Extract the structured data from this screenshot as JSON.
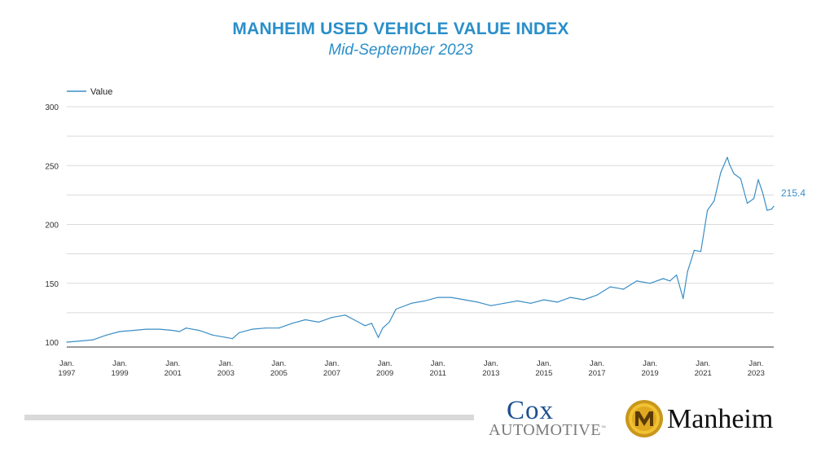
{
  "header": {
    "title": "MANHEIM USED VEHICLE VALUE INDEX",
    "subtitle": "Mid-September 2023"
  },
  "colors": {
    "accent": "#2a8fc9",
    "series": "#3a8ec5",
    "grid": "#d9d9d9",
    "axis": "#333333"
  },
  "chart_data": {
    "type": "line",
    "title": "MANHEIM USED VEHICLE VALUE INDEX",
    "subtitle": "Mid-September 2023",
    "xlabel": "",
    "ylabel": "",
    "ylim": [
      100,
      300
    ],
    "xlim": [
      "1997-01",
      "2023-09"
    ],
    "yticks": [
      100,
      150,
      200,
      250,
      300
    ],
    "xticks": [
      {
        "year": 1997,
        "top": "Jan.",
        "bottom": "1997"
      },
      {
        "year": 1999,
        "top": "Jan.",
        "bottom": "1999"
      },
      {
        "year": 2001,
        "top": "Jan.",
        "bottom": "2001"
      },
      {
        "year": 2003,
        "top": "Jan.",
        "bottom": "2003"
      },
      {
        "year": 2005,
        "top": "Jan.",
        "bottom": "2005"
      },
      {
        "year": 2007,
        "top": "Jan.",
        "bottom": "2007"
      },
      {
        "year": 2009,
        "top": "Jan.",
        "bottom": "2009"
      },
      {
        "year": 2011,
        "top": "Jan.",
        "bottom": "2011"
      },
      {
        "year": 2013,
        "top": "Jan.",
        "bottom": "2013"
      },
      {
        "year": 2015,
        "top": "Jan.",
        "bottom": "2015"
      },
      {
        "year": 2017,
        "top": "Jan.",
        "bottom": "2017"
      },
      {
        "year": 2019,
        "top": "Jan.",
        "bottom": "2019"
      },
      {
        "year": 2021,
        "top": "Jan.",
        "bottom": "2021"
      },
      {
        "year": 2023,
        "top": "Jan.",
        "bottom": "2023"
      }
    ],
    "grid": true,
    "legend": {
      "position": "top-left",
      "entries": [
        "Value"
      ]
    },
    "end_label": "215.4",
    "series": [
      {
        "name": "Value",
        "x": [
          "1997-01",
          "1997-07",
          "1998-01",
          "1998-07",
          "1999-01",
          "1999-07",
          "2000-01",
          "2000-07",
          "2001-01",
          "2001-04",
          "2001-07",
          "2002-01",
          "2002-07",
          "2003-01",
          "2003-04",
          "2003-07",
          "2004-01",
          "2004-07",
          "2005-01",
          "2005-07",
          "2006-01",
          "2006-07",
          "2007-01",
          "2007-07",
          "2008-01",
          "2008-04",
          "2008-07",
          "2008-10",
          "2008-12",
          "2009-03",
          "2009-06",
          "2010-01",
          "2010-07",
          "2011-01",
          "2011-07",
          "2012-01",
          "2012-07",
          "2013-01",
          "2013-07",
          "2014-01",
          "2014-07",
          "2015-01",
          "2015-07",
          "2016-01",
          "2016-07",
          "2017-01",
          "2017-07",
          "2018-01",
          "2018-07",
          "2019-01",
          "2019-07",
          "2019-10",
          "2020-01",
          "2020-04",
          "2020-06",
          "2020-09",
          "2020-12",
          "2021-03",
          "2021-06",
          "2021-09",
          "2021-12",
          "2022-01",
          "2022-03",
          "2022-06",
          "2022-09",
          "2022-12",
          "2023-02",
          "2023-04",
          "2023-06",
          "2023-08",
          "2023-09"
        ],
        "values": [
          100,
          101,
          102,
          106,
          109,
          110,
          111,
          111,
          110,
          109,
          112,
          110,
          106,
          104,
          103,
          108,
          111,
          112,
          112,
          116,
          119,
          117,
          121,
          123,
          117,
          114,
          116,
          104,
          112,
          117,
          128,
          133,
          135,
          138,
          138,
          136,
          134,
          131,
          133,
          135,
          133,
          136,
          134,
          138,
          136,
          140,
          147,
          145,
          152,
          150,
          154,
          152,
          157,
          137,
          160,
          178,
          177,
          212,
          220,
          244,
          257,
          251,
          243,
          239,
          218,
          222,
          238,
          227,
          212,
          213,
          215.4
        ]
      }
    ]
  },
  "branding": {
    "cox_word": "Cox",
    "automotive_word": "AUTOMOTIVE",
    "automotive_tm": "™",
    "manheim_word": "Manheim"
  }
}
